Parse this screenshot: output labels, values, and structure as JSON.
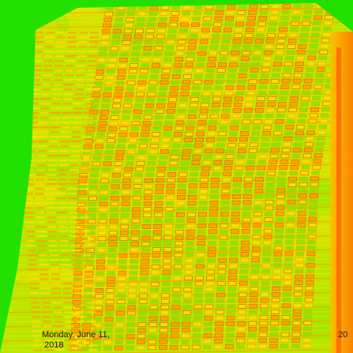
{
  "map": {
    "date_line1": "Monday, June 11,",
    "date_line2": "2018",
    "right_edge_text": "20"
  },
  "colors": {
    "background": "#22e000",
    "field_base": "#b8e800",
    "row_dark": "#ff4a00",
    "row_mid": "#ffa000",
    "row_light": "#ffe000",
    "green_patch": "#7fe600",
    "edge_strip": "#ff8a00",
    "text": "#1a1a1a"
  }
}
